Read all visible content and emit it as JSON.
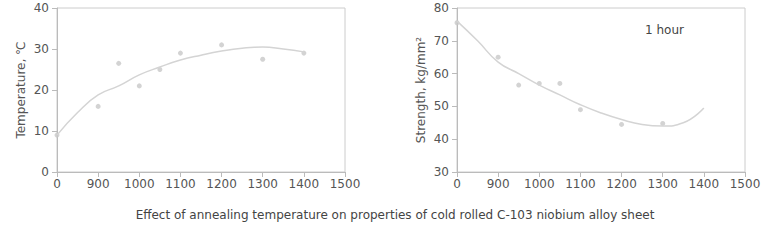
{
  "caption": "Effect of annealing temperature on properties of cold rolled C-103 niobium alloy sheet",
  "chart_data": [
    {
      "type": "scatter",
      "ylabel": "Temperature, ℃",
      "categories": [
        "0",
        null,
        "900",
        null,
        "1000",
        null,
        "1100",
        null,
        "1200",
        null,
        "1300",
        null,
        "1400",
        null,
        "1500"
      ],
      "series": [
        {
          "type": "scatter",
          "marker": "circle",
          "color": "#c8c8c8",
          "values": [
            9,
            null,
            16,
            26.5,
            21,
            25,
            29,
            null,
            31,
            null,
            27.5,
            null,
            29,
            null,
            null
          ]
        },
        {
          "type": "line",
          "line_style": "solid",
          "color": "#d4d4d4",
          "values": [
            9,
            14.5,
            18.8,
            21,
            23.7,
            25.6,
            27.3,
            28.5,
            29.5,
            30.2,
            30.5,
            30,
            29.3,
            null,
            null
          ]
        }
      ],
      "ylim": [
        0,
        40
      ],
      "yticks": [
        0,
        10,
        20,
        30,
        40
      ],
      "grid": false
    },
    {
      "type": "scatter",
      "ylabel": "Strength, kg/mm²",
      "annotation": "1 hour",
      "categories": [
        "0",
        null,
        "900",
        null,
        "1000",
        null,
        "1100",
        null,
        "1200",
        null,
        "1300",
        null,
        "1400",
        null,
        "1500"
      ],
      "series": [
        {
          "type": "scatter",
          "marker": "circle",
          "color": "#c8c8c8",
          "values": [
            75.5,
            null,
            65,
            56.5,
            57,
            57,
            49,
            null,
            44.5,
            null,
            44.8,
            null,
            null,
            null,
            null
          ]
        },
        {
          "type": "line",
          "line_style": "solid",
          "color": "#d4d4d4",
          "values": [
            76,
            70,
            63.5,
            60,
            56.5,
            53.5,
            50.5,
            48,
            46,
            44.5,
            44,
            45,
            49.5,
            null,
            null
          ]
        }
      ],
      "ylim": [
        30,
        80
      ],
      "yticks": [
        30,
        40,
        50,
        60,
        70,
        80
      ],
      "grid": false
    }
  ]
}
